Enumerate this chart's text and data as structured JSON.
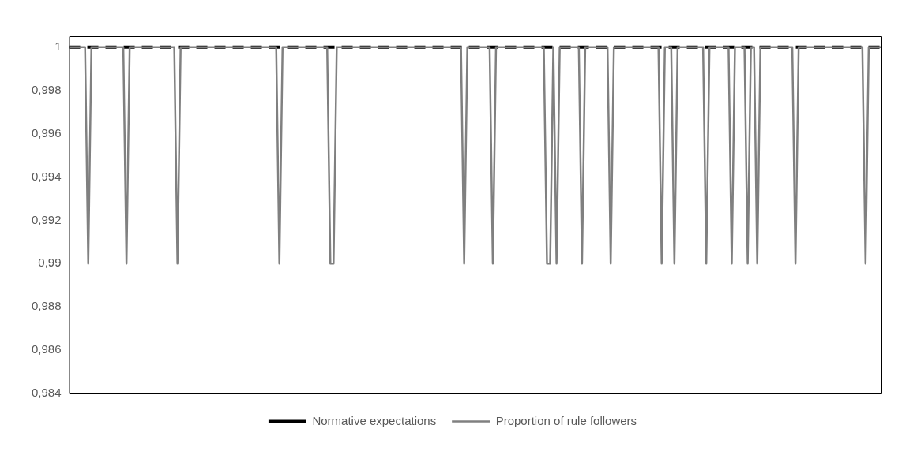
{
  "chart_data": {
    "type": "line",
    "categories": [
      null,
      null,
      null,
      null,
      null,
      null,
      null,
      null,
      null,
      null,
      null,
      null,
      null,
      null,
      null,
      null,
      null,
      null,
      null,
      null,
      null,
      null,
      null,
      null,
      null,
      null,
      null,
      null,
      null,
      null,
      null,
      null,
      null,
      null,
      null,
      null,
      null,
      null,
      null,
      null,
      null,
      null,
      null,
      null,
      null,
      null,
      null,
      null,
      null,
      null,
      null,
      null,
      null,
      null,
      null,
      null,
      null,
      null,
      null,
      null,
      null,
      null,
      null,
      null,
      null,
      null,
      null,
      null,
      null,
      null,
      null,
      null,
      null,
      null,
      null,
      null,
      null,
      null,
      null,
      null,
      null,
      null,
      null,
      null,
      null,
      null,
      null,
      null,
      null,
      null,
      null,
      null,
      null,
      null,
      null,
      null,
      null,
      null,
      null,
      null,
      null,
      null,
      null,
      null,
      null,
      null,
      null,
      null,
      null,
      null,
      null,
      null,
      null,
      null,
      null,
      null,
      null,
      null,
      null,
      null,
      null,
      null,
      null,
      null,
      null,
      null,
      null,
      null,
      null,
      null,
      null,
      null,
      null,
      null,
      null,
      null,
      null,
      null,
      null,
      null,
      null,
      null,
      null,
      null,
      null,
      null,
      null,
      null,
      null,
      null,
      null,
      null,
      null,
      null,
      null,
      null,
      null,
      null,
      null,
      null,
      null,
      null,
      null,
      null,
      null,
      null,
      null,
      null,
      null,
      null,
      null,
      null,
      null,
      null,
      null,
      null,
      null,
      null,
      null,
      null,
      null,
      null,
      null,
      null,
      null,
      null,
      null,
      null,
      null,
      null,
      null,
      null,
      null,
      null,
      null,
      null,
      null,
      null,
      null,
      null,
      null,
      null,
      null,
      null,
      null,
      null,
      null,
      null,
      null,
      null,
      null,
      null,
      null,
      null,
      null,
      null,
      null,
      null,
      null,
      null,
      null,
      null,
      null,
      null,
      null,
      null,
      null,
      null,
      null,
      null,
      null,
      null,
      null,
      null,
      null,
      null,
      null,
      null,
      null,
      null,
      null,
      null,
      null,
      null,
      null,
      null,
      null,
      null,
      null,
      null,
      null,
      null,
      null,
      null,
      null,
      null
    ],
    "series": [
      {
        "name": "Normative expectations",
        "color": "#000000",
        "line_style": "dashed",
        "values": [
          1,
          1,
          1,
          1,
          1,
          1,
          1,
          1,
          1,
          1,
          1,
          1,
          1,
          1,
          1,
          1,
          1,
          1,
          1,
          1,
          1,
          1,
          1,
          1,
          1,
          1,
          1,
          1,
          1,
          1,
          1,
          1,
          1,
          1,
          1,
          1,
          1,
          1,
          1,
          1,
          1,
          1,
          1,
          1,
          1,
          1,
          1,
          1,
          1,
          1,
          1,
          1,
          1,
          1,
          1,
          1,
          1,
          1,
          1,
          1,
          1,
          1,
          1,
          1,
          1,
          1,
          1,
          1,
          1,
          1,
          1,
          1,
          1,
          1,
          1,
          1,
          1,
          1,
          1,
          1,
          1,
          1,
          1,
          1,
          1,
          1,
          1,
          1,
          1,
          1,
          1,
          1,
          1,
          1,
          1,
          1,
          1,
          1,
          1,
          1,
          1,
          1,
          1,
          1,
          1,
          1,
          1,
          1,
          1,
          1,
          1,
          1,
          1,
          1,
          1,
          1,
          1,
          1,
          1,
          1,
          1,
          1,
          1,
          1,
          1,
          1,
          1,
          1,
          1,
          1,
          1,
          1,
          1,
          1,
          1,
          1,
          1,
          1,
          1,
          1,
          1,
          1,
          1,
          1,
          1,
          1,
          1,
          1,
          1,
          1,
          1,
          1,
          1,
          1,
          1,
          1,
          1,
          1,
          1,
          1,
          1,
          1,
          1,
          1,
          1,
          1,
          1,
          1,
          1,
          1,
          1,
          1,
          1,
          1,
          1,
          1,
          1,
          1,
          1,
          1,
          1,
          1,
          1,
          1,
          1,
          1,
          1,
          1,
          1,
          1,
          1,
          1,
          1,
          1,
          1,
          1,
          1,
          1,
          1,
          1,
          1,
          1,
          1,
          1,
          1,
          1,
          1,
          1,
          1,
          1,
          1,
          1,
          1,
          1,
          1,
          1,
          1,
          1,
          1,
          1,
          1,
          1,
          1,
          1,
          1,
          1,
          1,
          1,
          1,
          1,
          1,
          1,
          1,
          1,
          1,
          1,
          1,
          1,
          1,
          1,
          1,
          1,
          1,
          1,
          1,
          1,
          1,
          1,
          1,
          1,
          1,
          1,
          1,
          1,
          1,
          1
        ]
      },
      {
        "name": "Proportion of rule followers",
        "color": "#808080",
        "line_style": "solid",
        "values": [
          1,
          1,
          1,
          1,
          1,
          1,
          0.99,
          1,
          1,
          1,
          1,
          1,
          1,
          1,
          1,
          1,
          1,
          1,
          0.99,
          1,
          1,
          1,
          1,
          1,
          1,
          1,
          1,
          1,
          1,
          1,
          1,
          1,
          1,
          1,
          0.99,
          1,
          1,
          1,
          1,
          1,
          1,
          1,
          1,
          1,
          1,
          1,
          1,
          1,
          1,
          1,
          1,
          1,
          1,
          1,
          1,
          1,
          1,
          1,
          1,
          1,
          1,
          1,
          1,
          1,
          1,
          1,
          0.99,
          1,
          1,
          1,
          1,
          1,
          1,
          1,
          1,
          1,
          1,
          1,
          1,
          1,
          1,
          1,
          0.99,
          0.99,
          1,
          1,
          1,
          1,
          1,
          1,
          1,
          1,
          1,
          1,
          1,
          1,
          1,
          1,
          1,
          1,
          1,
          1,
          1,
          1,
          1,
          1,
          1,
          1,
          1,
          1,
          1,
          1,
          1,
          1,
          1,
          1,
          1,
          1,
          1,
          1,
          1,
          1,
          1,
          1,
          0.99,
          1,
          1,
          1,
          1,
          1,
          1,
          1,
          1,
          0.99,
          1,
          1,
          1,
          1,
          1,
          1,
          1,
          1,
          1,
          1,
          1,
          1,
          1,
          1,
          1,
          1,
          0.99,
          0.99,
          1,
          0.99,
          1,
          1,
          1,
          1,
          1,
          1,
          1,
          0.99,
          1,
          1,
          1,
          1,
          1,
          1,
          1,
          1,
          0.99,
          1,
          1,
          1,
          1,
          1,
          1,
          1,
          1,
          1,
          1,
          1,
          1,
          1,
          1,
          1,
          0.99,
          1,
          1,
          1,
          0.99,
          1,
          1,
          1,
          1,
          1,
          1,
          1,
          1,
          1,
          0.99,
          1,
          1,
          1,
          1,
          1,
          1,
          1,
          0.99,
          1,
          1,
          1,
          1,
          0.99,
          1,
          1,
          0.99,
          1,
          1,
          1,
          1,
          1,
          1,
          1,
          1,
          1,
          1,
          1,
          0.99,
          1,
          1,
          1,
          1,
          1,
          1,
          1,
          1,
          1,
          1,
          1,
          1,
          1,
          1,
          1,
          1,
          1,
          1,
          1,
          1,
          1,
          0.99,
          1,
          1,
          1,
          1,
          1
        ]
      }
    ],
    "ylim": [
      0.984,
      1.0005
    ],
    "yticks": [
      {
        "value": 0.984,
        "label": "0,984"
      },
      {
        "value": 0.986,
        "label": "0,986"
      },
      {
        "value": 0.988,
        "label": "0,988"
      },
      {
        "value": 0.99,
        "label": "0,99"
      },
      {
        "value": 0.992,
        "label": "0,992"
      },
      {
        "value": 0.994,
        "label": "0,994"
      },
      {
        "value": 0.996,
        "label": "0,996"
      },
      {
        "value": 0.998,
        "label": "0,998"
      },
      1
    ],
    "tick_labels": "y",
    "legend": "bottom",
    "marker": "none"
  }
}
